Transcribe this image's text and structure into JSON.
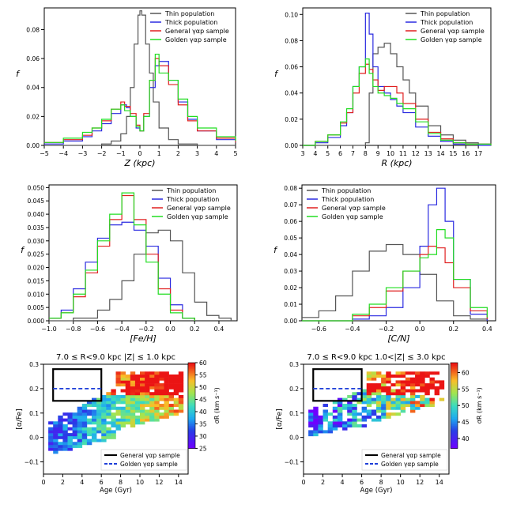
{
  "colors": {
    "thin": "#555555",
    "thick": "#2a2ae0",
    "general": "#e02020",
    "golden": "#22dd22",
    "box_general": "#000000",
    "box_golden": "#1f3fd8"
  },
  "chart_data": [
    {
      "id": "z",
      "type": "line",
      "xlabel": "Z (kpc)",
      "ylabel": "f",
      "xlim": [
        -5,
        5
      ],
      "ylim": [
        0,
        0.095
      ],
      "xticks": [
        -5,
        -4,
        -3,
        -2,
        -1,
        0,
        1,
        2,
        3,
        4,
        5
      ],
      "yticks": [
        0,
        0.02,
        0.04,
        0.06,
        0.08
      ],
      "ytick_labels": [
        "0.00",
        "0.02",
        "0.04",
        "0.06",
        "0.08"
      ],
      "legend": [
        "Thin population",
        "Thick population",
        "General γαp sample",
        "Golden γαp sample"
      ],
      "legend_position": "top-right",
      "series": [
        {
          "name": "Thin population",
          "x": [
            -5,
            -4,
            -3,
            -2,
            -1.5,
            -1,
            -0.7,
            -0.5,
            -0.3,
            -0.1,
            0,
            0.1,
            0.3,
            0.5,
            0.7,
            1,
            1.5,
            2,
            3,
            4,
            5
          ],
          "y": [
            0,
            0,
            0,
            0.001,
            0.003,
            0.008,
            0.02,
            0.04,
            0.07,
            0.09,
            0.093,
            0.09,
            0.07,
            0.05,
            0.03,
            0.012,
            0.004,
            0.001,
            0,
            0,
            0
          ]
        },
        {
          "name": "Thick population",
          "x": [
            -5,
            -4,
            -3,
            -2.5,
            -2,
            -1.5,
            -1,
            -0.7,
            -0.5,
            -0.2,
            0,
            0.2,
            0.5,
            0.8,
            1,
            1.5,
            2,
            2.5,
            3,
            4,
            5
          ],
          "y": [
            0.001,
            0.003,
            0.006,
            0.01,
            0.015,
            0.022,
            0.028,
            0.026,
            0.02,
            0.012,
            0.01,
            0.02,
            0.04,
            0.055,
            0.058,
            0.045,
            0.03,
            0.018,
            0.01,
            0.004,
            0.002
          ]
        },
        {
          "name": "General γαp sample",
          "x": [
            -5,
            -4,
            -3,
            -2.5,
            -2,
            -1.5,
            -1,
            -0.8,
            -0.5,
            -0.2,
            0,
            0.2,
            0.5,
            0.8,
            1,
            1.5,
            2,
            2.5,
            3,
            4,
            5
          ],
          "y": [
            0.002,
            0.004,
            0.007,
            0.012,
            0.017,
            0.025,
            0.03,
            0.027,
            0.022,
            0.014,
            0.01,
            0.022,
            0.045,
            0.06,
            0.055,
            0.042,
            0.028,
            0.017,
            0.01,
            0.005,
            0.002
          ]
        },
        {
          "name": "Golden γαp sample",
          "x": [
            -5,
            -4,
            -3,
            -2.5,
            -2,
            -1.5,
            -1,
            -0.8,
            -0.5,
            -0.2,
            0,
            0.2,
            0.5,
            0.8,
            1,
            1.5,
            2,
            2.5,
            3,
            4,
            5
          ],
          "y": [
            0.002,
            0.005,
            0.009,
            0.012,
            0.018,
            0.025,
            0.028,
            0.024,
            0.02,
            0.013,
            0.01,
            0.02,
            0.045,
            0.063,
            0.05,
            0.045,
            0.032,
            0.02,
            0.012,
            0.006,
            0.003
          ]
        }
      ]
    },
    {
      "id": "r",
      "type": "line",
      "xlabel": "R (kpc)",
      "ylabel": "f",
      "xlim": [
        3,
        18
      ],
      "ylim": [
        0,
        0.105
      ],
      "xticks": [
        3,
        4,
        5,
        6,
        7,
        8,
        9,
        10,
        11,
        12,
        13,
        14,
        15,
        16,
        17
      ],
      "yticks": [
        0,
        0.02,
        0.04,
        0.06,
        0.08,
        0.1
      ],
      "ytick_labels": [
        "0.00",
        "0.02",
        "0.04",
        "0.06",
        "0.08",
        "0.10"
      ],
      "legend": [
        "Thin population",
        "Thick population",
        "General γαp sample",
        "Golden γαp sample"
      ],
      "legend_position": "top-right",
      "series": [
        {
          "name": "Thin population",
          "x": [
            3,
            5,
            6,
            7,
            7.5,
            8,
            8.3,
            8.6,
            9,
            9.5,
            10,
            10.5,
            11,
            11.5,
            12,
            13,
            14,
            15,
            16,
            17,
            18
          ],
          "y": [
            0,
            0,
            0,
            0,
            0,
            0.002,
            0.04,
            0.07,
            0.075,
            0.078,
            0.07,
            0.06,
            0.05,
            0.04,
            0.03,
            0.015,
            0.008,
            0.004,
            0.002,
            0.001,
            0
          ]
        },
        {
          "name": "Thick population",
          "x": [
            3,
            4,
            5,
            6,
            6.5,
            7,
            7.5,
            8,
            8.3,
            8.6,
            9,
            9.5,
            10,
            10.5,
            11,
            12,
            13,
            14,
            15,
            16,
            17,
            18
          ],
          "y": [
            0,
            0.002,
            0.006,
            0.015,
            0.025,
            0.045,
            0.06,
            0.101,
            0.085,
            0.06,
            0.045,
            0.04,
            0.035,
            0.03,
            0.025,
            0.014,
            0.007,
            0.003,
            0.001,
            0.001,
            0,
            0
          ]
        },
        {
          "name": "General γαp sample",
          "x": [
            3,
            4,
            5,
            6,
            6.5,
            7,
            7.5,
            8,
            8.3,
            8.6,
            9,
            9.5,
            10,
            10.5,
            11,
            12,
            13,
            14,
            15,
            16,
            17,
            18
          ],
          "y": [
            0,
            0.003,
            0.008,
            0.017,
            0.025,
            0.04,
            0.055,
            0.062,
            0.058,
            0.05,
            0.042,
            0.045,
            0.045,
            0.04,
            0.032,
            0.02,
            0.01,
            0.005,
            0.002,
            0.001,
            0.001,
            0
          ]
        },
        {
          "name": "Golden γαp sample",
          "x": [
            3,
            4,
            5,
            6,
            6.5,
            7,
            7.5,
            8,
            8.3,
            8.6,
            9,
            9.5,
            10,
            10.5,
            11,
            12,
            13,
            14,
            15,
            16,
            17,
            18
          ],
          "y": [
            0,
            0.003,
            0.008,
            0.018,
            0.028,
            0.045,
            0.06,
            0.066,
            0.055,
            0.045,
            0.04,
            0.038,
            0.036,
            0.032,
            0.028,
            0.018,
            0.009,
            0.004,
            0.002,
            0.001,
            0.001,
            0
          ]
        }
      ]
    },
    {
      "id": "feh",
      "type": "line",
      "xlabel": "[Fe/H]",
      "ylabel": "f",
      "xlim": [
        -1.0,
        0.55
      ],
      "ylim": [
        0,
        0.051
      ],
      "xticks": [
        -1.0,
        -0.8,
        -0.6,
        -0.4,
        -0.2,
        0.0,
        0.2,
        0.4
      ],
      "xtick_labels": [
        "−1.0",
        "−0.8",
        "−0.6",
        "−0.4",
        "−0.2",
        "0.0",
        "0.2",
        "0.4"
      ],
      "yticks": [
        0,
        0.005,
        0.01,
        0.015,
        0.02,
        0.025,
        0.03,
        0.035,
        0.04,
        0.045,
        0.05
      ],
      "ytick_labels": [
        "0.000",
        "0.005",
        "0.010",
        "0.015",
        "0.020",
        "0.025",
        "0.030",
        "0.035",
        "0.040",
        "0.045",
        "0.050"
      ],
      "legend": [
        "Thin population",
        "Thick population",
        "General γαp sample",
        "Golden γαp sample"
      ],
      "legend_position": "top-right",
      "series": [
        {
          "name": "Thin population",
          "x": [
            -1.0,
            -0.8,
            -0.6,
            -0.5,
            -0.4,
            -0.3,
            -0.2,
            -0.1,
            0.0,
            0.1,
            0.2,
            0.3,
            0.4,
            0.5
          ],
          "y": [
            0,
            0.001,
            0.004,
            0.008,
            0.015,
            0.025,
            0.033,
            0.034,
            0.03,
            0.018,
            0.007,
            0.002,
            0.001,
            0
          ]
        },
        {
          "name": "Thick population",
          "x": [
            -1.0,
            -0.9,
            -0.8,
            -0.7,
            -0.6,
            -0.5,
            -0.4,
            -0.3,
            -0.2,
            -0.1,
            0.0,
            0.1,
            0.2
          ],
          "y": [
            0.001,
            0.004,
            0.012,
            0.022,
            0.031,
            0.036,
            0.037,
            0.034,
            0.028,
            0.016,
            0.006,
            0.001,
            0
          ]
        },
        {
          "name": "General γαp sample",
          "x": [
            -1.0,
            -0.9,
            -0.8,
            -0.7,
            -0.6,
            -0.5,
            -0.4,
            -0.3,
            -0.2,
            -0.1,
            0.0,
            0.1,
            0.2
          ],
          "y": [
            0.001,
            0.003,
            0.009,
            0.018,
            0.028,
            0.038,
            0.047,
            0.038,
            0.025,
            0.012,
            0.004,
            0.001,
            0
          ]
        },
        {
          "name": "Golden γαp sample",
          "x": [
            -1.0,
            -0.9,
            -0.8,
            -0.7,
            -0.6,
            -0.5,
            -0.4,
            -0.3,
            -0.2,
            -0.1,
            0.0,
            0.1,
            0.2
          ],
          "y": [
            0.001,
            0.003,
            0.01,
            0.019,
            0.03,
            0.04,
            0.048,
            0.036,
            0.022,
            0.01,
            0.003,
            0.001,
            0
          ]
        }
      ]
    },
    {
      "id": "cn",
      "type": "line",
      "xlabel": "[C/N]",
      "ylabel": "f",
      "xlim": [
        -0.7,
        0.45
      ],
      "ylim": [
        0,
        0.082
      ],
      "xticks": [
        -0.6,
        -0.4,
        -0.2,
        0.0,
        0.2,
        0.4
      ],
      "xtick_labels": [
        "−0.6",
        "−0.4",
        "−0.2",
        "0.0",
        "0.2",
        "0.4"
      ],
      "yticks": [
        0,
        0.01,
        0.02,
        0.03,
        0.04,
        0.05,
        0.06,
        0.07,
        0.08
      ],
      "ytick_labels": [
        "0.00",
        "0.01",
        "0.02",
        "0.03",
        "0.04",
        "0.05",
        "0.06",
        "0.07",
        "0.08"
      ],
      "legend": [
        "Thin population",
        "Thick population",
        "General γαp sample",
        "Golden γαp sample"
      ],
      "legend_position": "top-left",
      "series": [
        {
          "name": "Thin population",
          "x": [
            -0.7,
            -0.6,
            -0.5,
            -0.4,
            -0.3,
            -0.2,
            -0.1,
            0.0,
            0.1,
            0.2,
            0.3,
            0.4
          ],
          "y": [
            0.002,
            0.006,
            0.015,
            0.03,
            0.042,
            0.046,
            0.04,
            0.028,
            0.012,
            0.003,
            0.001,
            0
          ]
        },
        {
          "name": "Thick population",
          "x": [
            -0.7,
            -0.4,
            -0.3,
            -0.2,
            -0.1,
            0.0,
            0.05,
            0.1,
            0.15,
            0.2,
            0.3,
            0.4
          ],
          "y": [
            0,
            0.001,
            0.003,
            0.008,
            0.02,
            0.045,
            0.07,
            0.08,
            0.06,
            0.025,
            0.004,
            0
          ]
        },
        {
          "name": "General γαp sample",
          "x": [
            -0.7,
            -0.4,
            -0.3,
            -0.2,
            -0.1,
            0.0,
            0.05,
            0.1,
            0.15,
            0.2,
            0.3,
            0.4
          ],
          "y": [
            0,
            0.003,
            0.008,
            0.018,
            0.03,
            0.04,
            0.045,
            0.044,
            0.035,
            0.02,
            0.006,
            0.001
          ]
        },
        {
          "name": "Golden γαp sample",
          "x": [
            -0.7,
            -0.4,
            -0.3,
            -0.2,
            -0.1,
            0.0,
            0.05,
            0.1,
            0.15,
            0.2,
            0.3,
            0.4
          ],
          "y": [
            0,
            0.004,
            0.01,
            0.02,
            0.03,
            0.038,
            0.04,
            0.055,
            0.05,
            0.025,
            0.008,
            0.002
          ]
        }
      ]
    },
    {
      "id": "age1",
      "type": "heatmap",
      "title": "7.0 ≤ R<9.0 kpc    |Z| ≤ 1.0 kpc",
      "xlabel": "Age (Gyr)",
      "ylabel": "[α/Fe]",
      "xlim": [
        0,
        15
      ],
      "ylim": [
        -0.15,
        0.3
      ],
      "xticks": [
        0,
        2,
        4,
        6,
        8,
        10,
        12,
        14
      ],
      "yticks": [
        -0.1,
        0.0,
        0.1,
        0.2,
        0.3
      ],
      "ytick_labels": [
        "−0.1",
        "0.0",
        "0.1",
        "0.2",
        "0.3"
      ],
      "colorbar_label": "σR (km s⁻¹)",
      "colorbar_range": [
        25,
        60
      ],
      "colorbar_ticks": [
        25,
        30,
        35,
        40,
        45,
        50,
        55,
        60
      ],
      "boxes": [
        {
          "name": "General γαp sample",
          "x": [
            1,
            6
          ],
          "y": [
            0.15,
            0.28
          ]
        },
        {
          "name": "Golden γαp sample",
          "x": [
            1,
            6
          ],
          "y": [
            0.2,
            0.2
          ]
        }
      ],
      "legend": [
        "General γαp sample",
        "Golden γαp sample"
      ],
      "legend_position": "bottom-right"
    },
    {
      "id": "age2",
      "type": "heatmap",
      "title": "7.0 ≤ R<9.0 kpc    1.0<|Z| ≤ 3.0 kpc",
      "xlabel": "Age (Gyr)",
      "ylabel": "[α/Fe]",
      "xlim": [
        0,
        15
      ],
      "ylim": [
        -0.15,
        0.3
      ],
      "xticks": [
        0,
        2,
        4,
        6,
        8,
        10,
        12,
        14
      ],
      "yticks": [
        -0.1,
        0.0,
        0.1,
        0.2,
        0.3
      ],
      "ytick_labels": [
        "−0.1",
        "0.0",
        "0.1",
        "0.2",
        "0.3"
      ],
      "colorbar_label": "σR (km s⁻¹)",
      "colorbar_range": [
        37,
        63
      ],
      "colorbar_ticks": [
        40,
        45,
        50,
        55,
        60
      ],
      "boxes": [
        {
          "name": "General γαp sample",
          "x": [
            1,
            6
          ],
          "y": [
            0.15,
            0.28
          ]
        },
        {
          "name": "Golden γαp sample",
          "x": [
            1,
            6
          ],
          "y": [
            0.2,
            0.2
          ]
        }
      ],
      "legend": [
        "General γαp sample",
        "Golden γαp sample"
      ],
      "legend_position": "bottom-right"
    }
  ]
}
